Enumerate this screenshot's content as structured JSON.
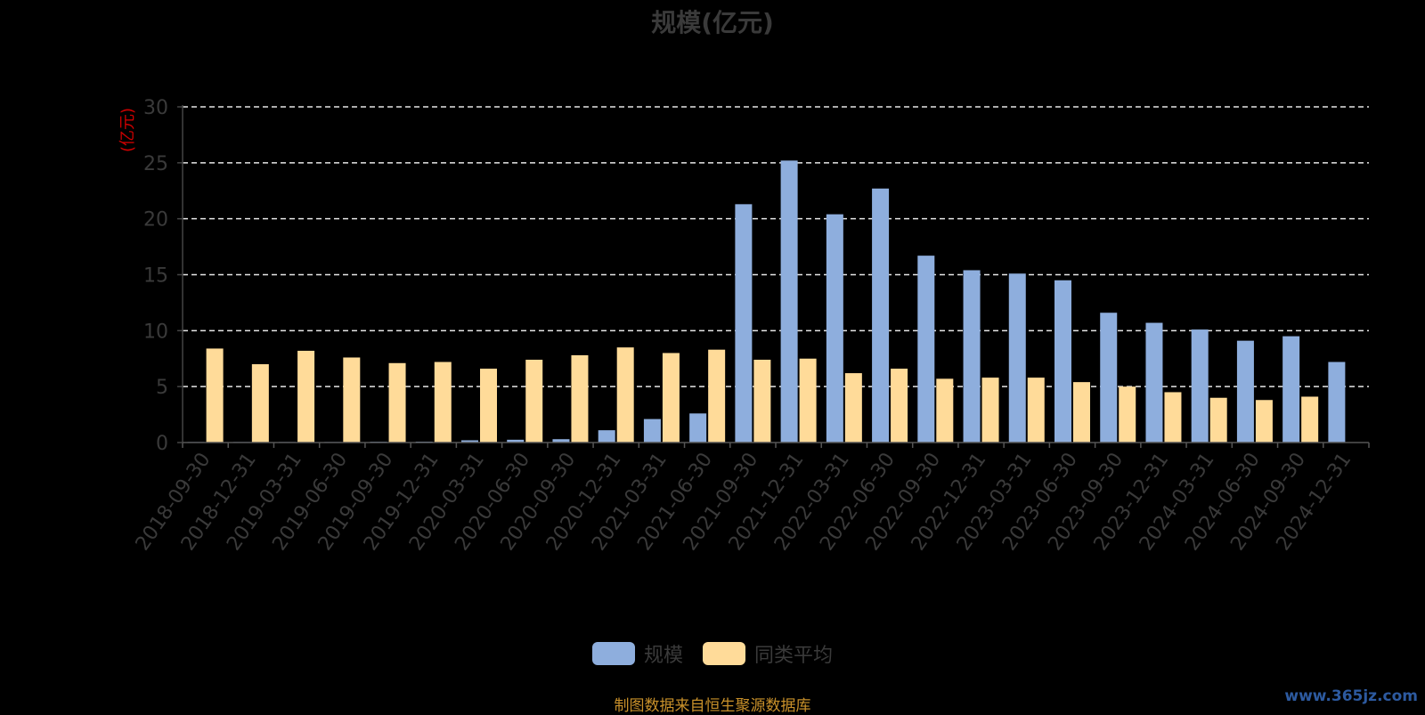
{
  "chart_data": {
    "type": "bar",
    "title": "规模(亿元)",
    "ylabel": "(亿元)",
    "ylim": [
      0,
      30
    ],
    "yticks": [
      0,
      5,
      10,
      15,
      20,
      25,
      30
    ],
    "grid": true,
    "legend_position": "bottom",
    "categories": [
      "2018-09-30",
      "2018-12-31",
      "2019-03-31",
      "2019-06-30",
      "2019-09-30",
      "2019-12-31",
      "2020-03-31",
      "2020-06-30",
      "2020-09-30",
      "2020-12-31",
      "2021-03-31",
      "2021-06-30",
      "2021-09-30",
      "2021-12-31",
      "2022-03-31",
      "2022-06-30",
      "2022-09-30",
      "2022-12-31",
      "2023-03-31",
      "2023-06-30",
      "2023-09-30",
      "2023-12-31",
      "2024-03-31",
      "2024-06-30",
      "2024-09-30",
      "2024-12-31"
    ],
    "series": [
      {
        "name": "规模",
        "color": "#8eaedd",
        "values": [
          0.05,
          0.05,
          0.05,
          0.05,
          0.07,
          0.08,
          0.2,
          0.25,
          0.3,
          1.1,
          2.1,
          2.6,
          21.3,
          25.2,
          20.4,
          22.7,
          16.7,
          15.4,
          15.1,
          14.5,
          11.6,
          10.7,
          10.1,
          9.1,
          9.5,
          7.2
        ]
      },
      {
        "name": "同类平均",
        "color": "#ffdb99",
        "values": [
          8.4,
          7.0,
          8.2,
          7.6,
          7.1,
          7.2,
          6.6,
          7.4,
          7.8,
          8.5,
          8.0,
          8.3,
          7.4,
          7.5,
          6.2,
          6.6,
          5.7,
          5.8,
          5.8,
          5.4,
          5.0,
          4.5,
          4.0,
          3.8,
          4.1,
          null
        ]
      }
    ]
  },
  "source_note": "制图数据来自恒生聚源数据库",
  "watermark": "www.365jz.com",
  "colors": {
    "background": "#000000",
    "axis_text": "#3a3a3a",
    "ylabel": "#cc0000",
    "grid": "#e6e6e6"
  }
}
